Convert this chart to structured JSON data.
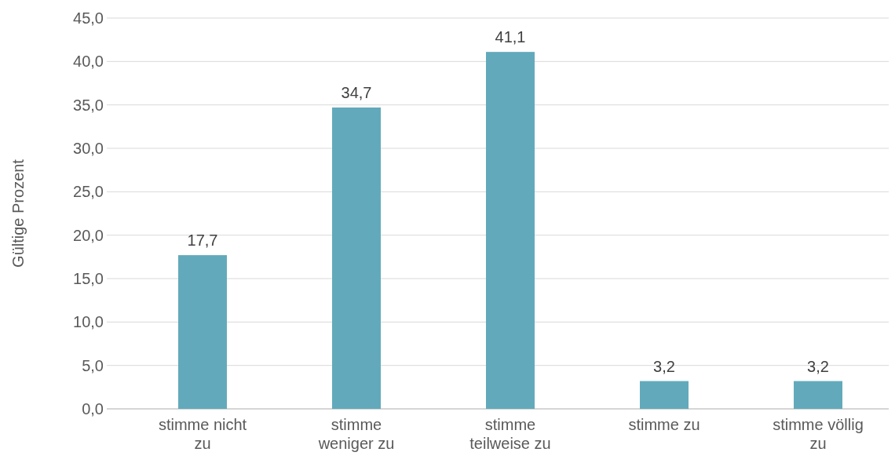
{
  "chart_data": {
    "type": "bar",
    "ylabel": "Gültige Prozent",
    "categories": [
      "stimme nicht zu",
      "stimme weniger zu",
      "stimme teilweise zu",
      "stimme zu",
      "stimme völlig zu"
    ],
    "values": [
      17.7,
      34.7,
      41.1,
      3.2,
      3.2
    ],
    "color": "#62aabb",
    "ylim": [
      0,
      45
    ],
    "yticks": [
      {
        "value": 0,
        "label": "0,0"
      },
      {
        "value": 5,
        "label": "5,0"
      },
      {
        "value": 10,
        "label": "10,0"
      },
      {
        "value": 15,
        "label": "15,0"
      },
      {
        "value": 20,
        "label": "20,0"
      },
      {
        "value": 25,
        "label": "25,0"
      },
      {
        "value": 30,
        "label": "30,0"
      },
      {
        "value": 35,
        "label": "35,0"
      },
      {
        "value": 40,
        "label": "40,0"
      },
      {
        "value": 45,
        "label": "45,0"
      }
    ],
    "value_labels": [
      "17,7",
      "34,7",
      "41,1",
      "3,2",
      "3,2"
    ],
    "grid": "y"
  }
}
